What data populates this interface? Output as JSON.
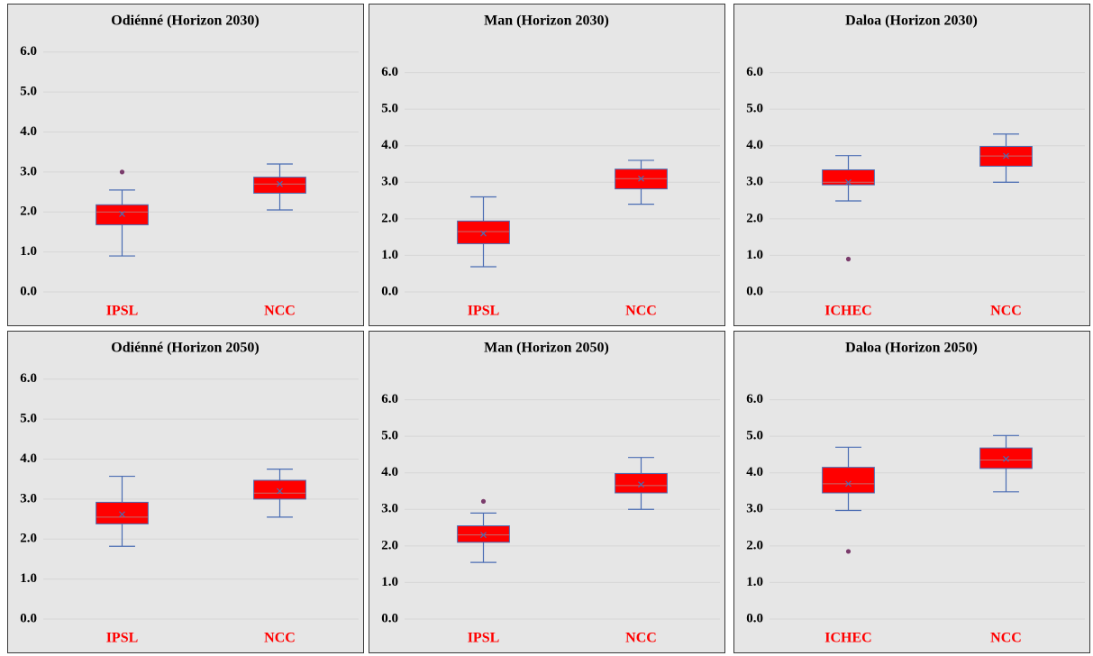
{
  "chart_data": [
    {
      "type": "box",
      "title": "Odiénné (Horizon 2030)",
      "categories": [
        "IPSL",
        "NCC"
      ],
      "boxes": [
        {
          "min": 0.9,
          "q1": 1.68,
          "median": 2.0,
          "q3": 2.18,
          "max": 2.55,
          "mean": 1.95,
          "outliers": [
            3.0
          ]
        },
        {
          "min": 2.05,
          "q1": 2.47,
          "median": 2.7,
          "q3": 2.87,
          "max": 3.2,
          "mean": 2.7,
          "outliers": []
        }
      ],
      "ylim": [
        0,
        6.4
      ],
      "yticks": [
        {
          "value": 0,
          "label": "0.0"
        },
        {
          "value": 1,
          "label": "1.0"
        },
        {
          "value": 2,
          "label": "2.0"
        },
        {
          "value": 3,
          "label": "3.0"
        },
        {
          "value": 4,
          "label": "4.0"
        },
        {
          "value": 5,
          "label": "5.0"
        },
        {
          "value": 6,
          "label": "6.0"
        }
      ],
      "grid": true,
      "color": "#ff0000",
      "line_color": "#4a6cb3",
      "outlier_color": "#7a3b6b"
    },
    {
      "type": "box",
      "title": "Man (Horizon 2030)",
      "categories": [
        "IPSL",
        "NCC"
      ],
      "boxes": [
        {
          "min": 0.69,
          "q1": 1.32,
          "median": 1.65,
          "q3": 1.94,
          "max": 2.6,
          "mean": 1.6,
          "outliers": []
        },
        {
          "min": 2.4,
          "q1": 2.82,
          "median": 3.1,
          "q3": 3.36,
          "max": 3.6,
          "mean": 3.1,
          "outliers": []
        }
      ],
      "ylim": [
        0,
        7
      ],
      "yticks": [
        {
          "value": 0,
          "label": "0.0"
        },
        {
          "value": 1,
          "label": "1.0"
        },
        {
          "value": 2,
          "label": "2.0"
        },
        {
          "value": 3,
          "label": "3.0"
        },
        {
          "value": 4,
          "label": "4.0"
        },
        {
          "value": 5,
          "label": "5.0"
        },
        {
          "value": 6,
          "label": "6.0"
        }
      ],
      "grid": true,
      "color": "#ff0000",
      "line_color": "#4a6cb3",
      "outlier_color": "#7a3b6b"
    },
    {
      "type": "box",
      "title": "Daloa (Horizon 2030)",
      "categories": [
        "ICHEC",
        "NCC"
      ],
      "boxes": [
        {
          "min": 2.49,
          "q1": 2.93,
          "median": 3.0,
          "q3": 3.34,
          "max": 3.73,
          "mean": 3.0,
          "outliers": [
            0.9
          ]
        },
        {
          "min": 3.0,
          "q1": 3.44,
          "median": 3.72,
          "q3": 3.98,
          "max": 4.32,
          "mean": 3.72,
          "outliers": []
        }
      ],
      "ylim": [
        0,
        7
      ],
      "yticks": [
        {
          "value": 0,
          "label": "0.0"
        },
        {
          "value": 1,
          "label": "1.0"
        },
        {
          "value": 2,
          "label": "2.0"
        },
        {
          "value": 3,
          "label": "3.0"
        },
        {
          "value": 4,
          "label": "4.0"
        },
        {
          "value": 5,
          "label": "5.0"
        },
        {
          "value": 6,
          "label": "6.0"
        }
      ],
      "grid": true,
      "color": "#ff0000",
      "line_color": "#4a6cb3",
      "outlier_color": "#7a3b6b"
    },
    {
      "type": "box",
      "title": "Odiénné (Horizon 2050)",
      "categories": [
        "IPSL",
        "NCC"
      ],
      "boxes": [
        {
          "min": 1.82,
          "q1": 2.38,
          "median": 2.55,
          "q3": 2.92,
          "max": 3.57,
          "mean": 2.62,
          "outliers": []
        },
        {
          "min": 2.55,
          "q1": 3.0,
          "median": 3.15,
          "q3": 3.47,
          "max": 3.75,
          "mean": 3.2,
          "outliers": []
        }
      ],
      "ylim": [
        0,
        6.4
      ],
      "yticks": [
        {
          "value": 0,
          "label": "0.0"
        },
        {
          "value": 1,
          "label": "1.0"
        },
        {
          "value": 2,
          "label": "2.0"
        },
        {
          "value": 3,
          "label": "3.0"
        },
        {
          "value": 4,
          "label": "4.0"
        },
        {
          "value": 5,
          "label": "5.0"
        },
        {
          "value": 6,
          "label": "6.0"
        }
      ],
      "grid": true,
      "color": "#ff0000",
      "line_color": "#4a6cb3",
      "outlier_color": "#7a3b6b"
    },
    {
      "type": "box",
      "title": "Man (Horizon 2050)",
      "categories": [
        "IPSL",
        "NCC"
      ],
      "boxes": [
        {
          "min": 1.55,
          "q1": 2.1,
          "median": 2.3,
          "q3": 2.55,
          "max": 2.9,
          "mean": 2.3,
          "outliers": [
            3.22
          ]
        },
        {
          "min": 3.0,
          "q1": 3.45,
          "median": 3.65,
          "q3": 3.98,
          "max": 4.42,
          "mean": 3.68,
          "outliers": []
        }
      ],
      "ylim": [
        0,
        7
      ],
      "yticks": [
        {
          "value": 0,
          "label": "0.0"
        },
        {
          "value": 1,
          "label": "1.0"
        },
        {
          "value": 2,
          "label": "2.0"
        },
        {
          "value": 3,
          "label": "3.0"
        },
        {
          "value": 4,
          "label": "4.0"
        },
        {
          "value": 5,
          "label": "5.0"
        },
        {
          "value": 6,
          "label": "6.0"
        }
      ],
      "grid": true,
      "color": "#ff0000",
      "line_color": "#4a6cb3",
      "outlier_color": "#7a3b6b"
    },
    {
      "type": "box",
      "title": "Daloa (Horizon 2050)",
      "categories": [
        "ICHEC",
        "NCC"
      ],
      "boxes": [
        {
          "min": 2.97,
          "q1": 3.45,
          "median": 3.7,
          "q3": 4.15,
          "max": 4.7,
          "mean": 3.7,
          "outliers": [
            1.85
          ]
        },
        {
          "min": 3.48,
          "q1": 4.12,
          "median": 4.35,
          "q3": 4.68,
          "max": 5.02,
          "mean": 4.38,
          "outliers": []
        }
      ],
      "ylim": [
        0,
        7
      ],
      "yticks": [
        {
          "value": 0,
          "label": "0.0"
        },
        {
          "value": 1,
          "label": "1.0"
        },
        {
          "value": 2,
          "label": "2.0"
        },
        {
          "value": 3,
          "label": "3.0"
        },
        {
          "value": 4,
          "label": "4.0"
        },
        {
          "value": 5,
          "label": "5.0"
        },
        {
          "value": 6,
          "label": "6.0"
        }
      ],
      "grid": true,
      "color": "#ff0000",
      "line_color": "#4a6cb3",
      "outlier_color": "#7a3b6b"
    }
  ]
}
